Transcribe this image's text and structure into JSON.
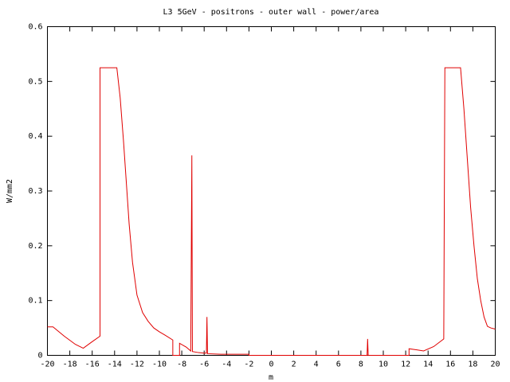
{
  "chart_data": {
    "type": "line",
    "title": "L3 5GeV - positrons -  outer wall - power/area",
    "x_label": "m",
    "y_label": "W/mm2",
    "color": "#e00000",
    "xlim": [
      -20,
      20
    ],
    "xticks": [
      -20,
      -18,
      -16,
      -14,
      -12,
      -10,
      -8,
      -6,
      -4,
      -2,
      0,
      2,
      4,
      6,
      8,
      10,
      12,
      14,
      16,
      18,
      20
    ],
    "ylim": [
      0,
      0.6
    ],
    "yticks": [
      0,
      0.1,
      0.2,
      0.3,
      0.4,
      0.5,
      0.6
    ],
    "x": [
      -20,
      -19.5,
      -18.5,
      -17.5,
      -16.8,
      -16,
      -15.3,
      -15.3,
      -13.8,
      -13.5,
      -13.2,
      -13,
      -12.7,
      -12.4,
      -12,
      -11.5,
      -11,
      -10.5,
      -10,
      -9.5,
      -8.8,
      -8.8,
      -8.2,
      -8.2,
      -7.6,
      -7.2,
      -7.1,
      -7.05,
      -6.5,
      -6,
      -5.8,
      -5.75,
      -5.7,
      -4.5,
      -2,
      -2,
      8.55,
      8.6,
      8.65,
      12.3,
      12.3,
      13,
      13.6,
      14.5,
      15.4,
      15.5,
      16.9,
      17.2,
      17.5,
      17.8,
      18.1,
      18.4,
      18.7,
      19,
      19.3,
      19.6,
      20
    ],
    "values": [
      0.052,
      0.052,
      0.035,
      0.02,
      0.013,
      0.025,
      0.035,
      0.525,
      0.525,
      0.47,
      0.39,
      0.33,
      0.24,
      0.17,
      0.11,
      0.078,
      0.062,
      0.05,
      0.043,
      0.037,
      0.028,
      0,
      0,
      0.022,
      0.015,
      0.008,
      0.365,
      0.007,
      0.005,
      0.004,
      0.004,
      0.07,
      0.003,
      0.002,
      0.002,
      0,
      0,
      0.03,
      0,
      0,
      0.012,
      0.01,
      0.008,
      0.016,
      0.03,
      0.525,
      0.525,
      0.45,
      0.36,
      0.27,
      0.2,
      0.14,
      0.1,
      0.07,
      0.053,
      0.05,
      0.048
    ]
  }
}
